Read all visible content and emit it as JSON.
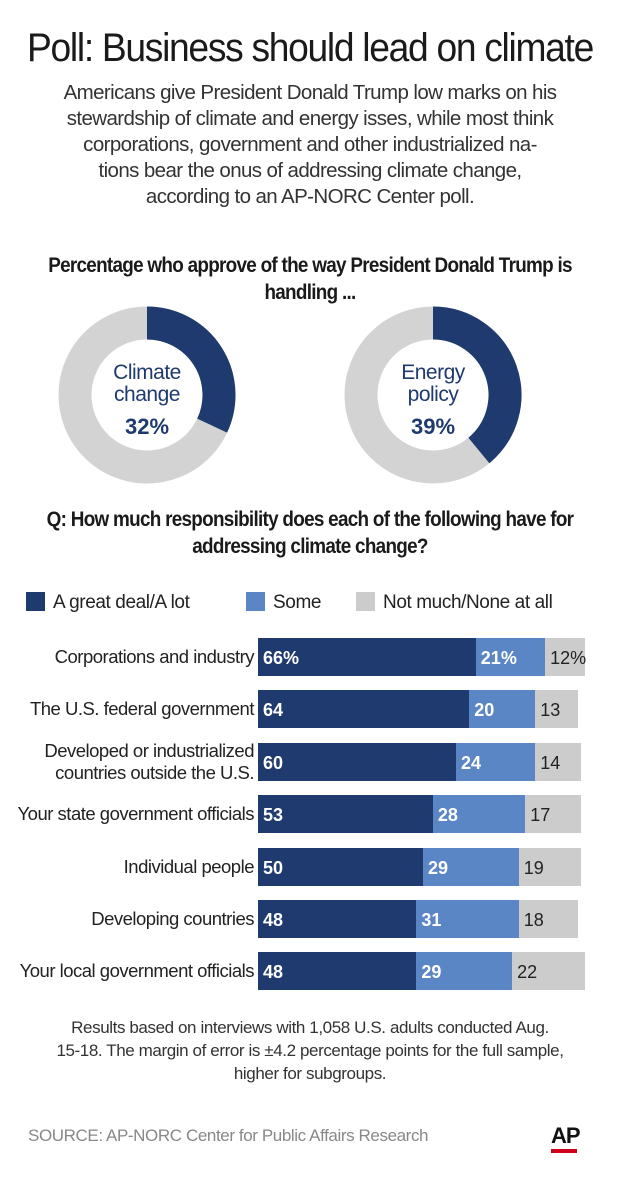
{
  "headline": "Poll: Business should lead on climate",
  "intro": [
    "Americans give President Donald Trump low marks on his",
    "stewardship of climate and energy isses, while most think",
    "corporations, government and other industrialized na-",
    "tions bear the onus of addressing climate change,",
    "according to an AP-NORC Center poll."
  ],
  "colors": {
    "great_deal": "#1f3a6e",
    "some": "#5a86c5",
    "not_much": "#cccccc",
    "donut_rest": "#d3d3d3",
    "ap_red": "#d0021b"
  },
  "chart_data": [
    {
      "type": "pie",
      "title": [
        "Percentage who approve of the way President Donald Trump is",
        "handling ..."
      ],
      "donuts": [
        {
          "label": [
            "Climate",
            "change"
          ],
          "value": 32,
          "value_text": "32%"
        },
        {
          "label": [
            "Energy",
            "policy"
          ],
          "value": 39,
          "value_text": "39%"
        }
      ]
    },
    {
      "type": "bar",
      "stacked": true,
      "orientation": "horizontal",
      "title": [
        "Q: How much responsibility does each of the following have for",
        "addressing climate change?"
      ],
      "legend": [
        "A great deal/A lot",
        "Some",
        "Not much/None at all"
      ],
      "legend_position": "top",
      "categories": [
        [
          "Corporations and industry"
        ],
        [
          "The U.S. federal government"
        ],
        [
          "Developed or industrialized",
          "countries outside the U.S."
        ],
        [
          "Your state government officials"
        ],
        [
          "Individual people"
        ],
        [
          "Developing countries"
        ],
        [
          "Your local government officials"
        ]
      ],
      "series": [
        {
          "name": "A great deal/A lot",
          "values": [
            66,
            64,
            60,
            53,
            50,
            48,
            48
          ],
          "labels": [
            "66%",
            "64",
            "60",
            "53",
            "50",
            "48",
            "48"
          ]
        },
        {
          "name": "Some",
          "values": [
            21,
            20,
            24,
            28,
            29,
            31,
            29
          ],
          "labels": [
            "21%",
            "20",
            "24",
            "28",
            "29",
            "31",
            "29"
          ]
        },
        {
          "name": "Not much/None at all",
          "values": [
            12,
            13,
            14,
            17,
            19,
            18,
            22
          ],
          "labels": [
            "12%",
            "13",
            "14",
            "17",
            "19",
            "18",
            "22"
          ]
        }
      ],
      "xlim": [
        0,
        100
      ]
    }
  ],
  "footnote": [
    "Results based on interviews with 1,058 U.S. adults conducted Aug.",
    "15-18. The margin of error is ±4.2 percentage points for the full sample,",
    "higher for subgroups."
  ],
  "source": "SOURCE: AP-NORC Center for Public Affairs Research",
  "logo": "AP"
}
